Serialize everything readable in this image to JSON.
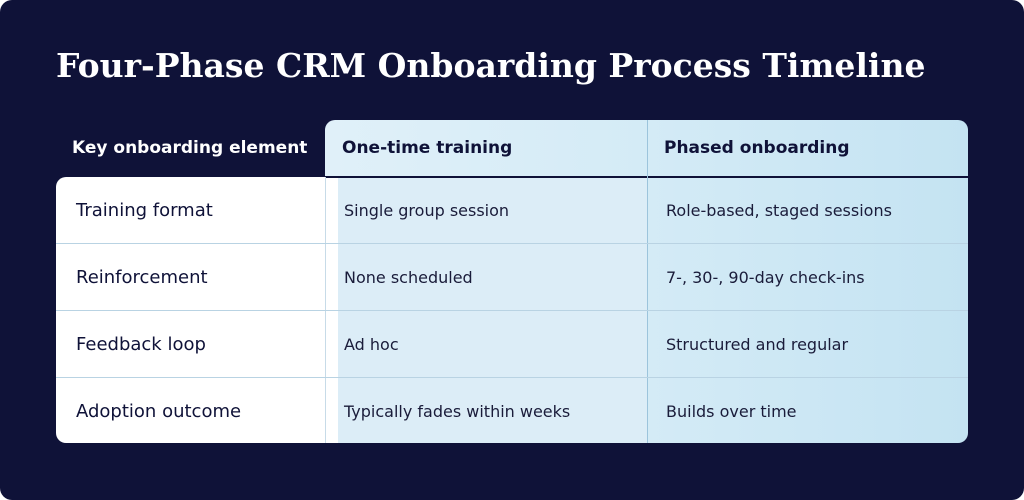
{
  "title": "Four-Phase CRM Onboarding Process Timeline",
  "table": {
    "headers": [
      "Key onboarding element",
      "One-time training",
      "Phased onboarding"
    ],
    "rows": [
      {
        "element": "Training format",
        "one_time": "Single group session",
        "phased": "Role-based, staged sessions"
      },
      {
        "element": "Reinforcement",
        "one_time": "None scheduled",
        "phased": "7-, 30-, 90-day check-ins"
      },
      {
        "element": "Feedback loop",
        "one_time": "Ad hoc",
        "phased": "Structured and regular"
      },
      {
        "element": "Adoption outcome",
        "one_time": "Typically fades within weeks",
        "phased": "Builds over time"
      }
    ]
  },
  "colors": {
    "background": "#0f1238",
    "highlight_start": "#e0f0f9",
    "highlight_end": "#c4e3f2",
    "row_key_bg": "#ffffff"
  }
}
